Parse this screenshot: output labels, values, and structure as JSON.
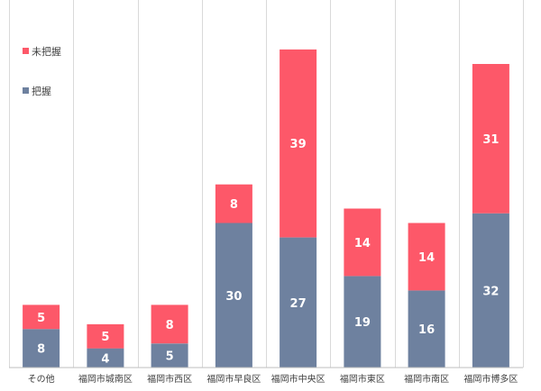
{
  "chart_data": {
    "type": "bar",
    "stacked": true,
    "categories": [
      "その他",
      "福岡市城南区",
      "福岡市西区",
      "福岡市早良区",
      "福岡市中央区",
      "福岡市東区",
      "福岡市南区",
      "福岡市博多区"
    ],
    "series": [
      {
        "name": "把握",
        "color": "#6e819f",
        "values": [
          8,
          4,
          5,
          30,
          27,
          19,
          16,
          32
        ]
      },
      {
        "name": "未把握",
        "color": "#fd5869",
        "values": [
          5,
          5,
          8,
          8,
          39,
          14,
          14,
          31
        ]
      }
    ],
    "legend_order": [
      "未把握",
      "把握"
    ],
    "legend_position": "top-left",
    "title": "",
    "xlabel": "",
    "ylabel": "",
    "grid": false,
    "ylim": [
      0,
      72
    ]
  }
}
